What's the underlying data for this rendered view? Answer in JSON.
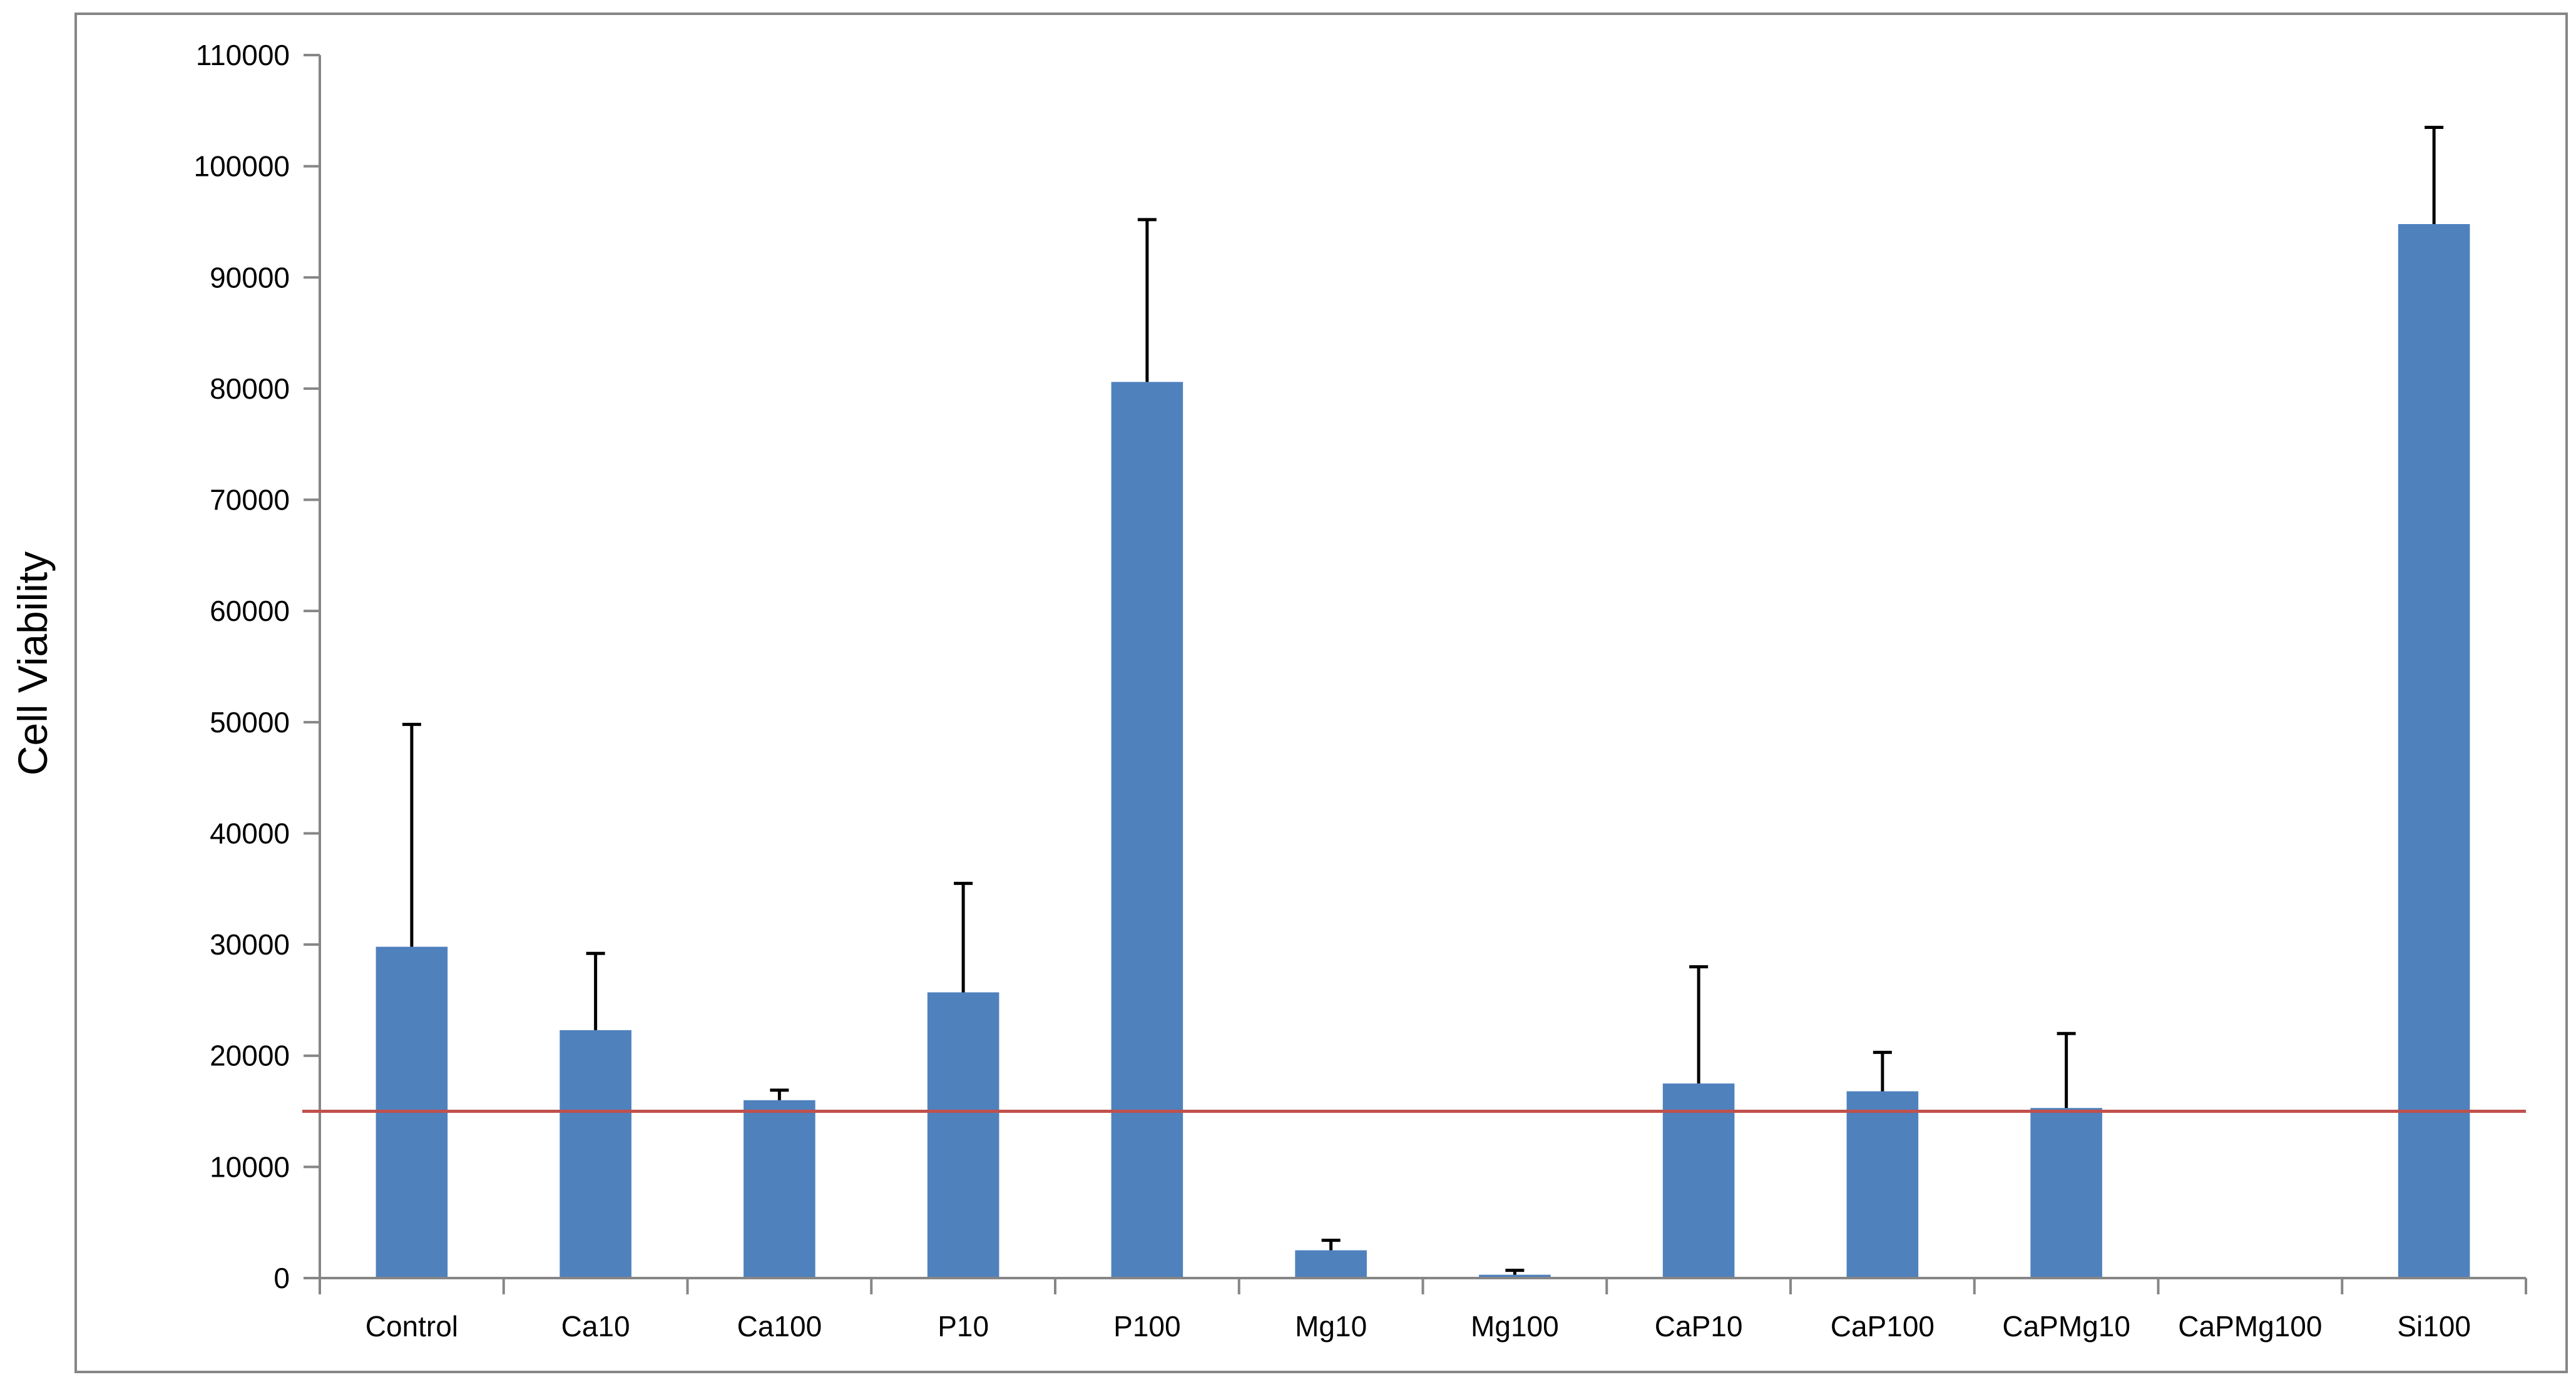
{
  "chart_data": {
    "type": "bar",
    "title": "",
    "xlabel": "",
    "ylabel": "Cell Viability",
    "ylim": [
      0,
      110000
    ],
    "y_tick_step": 10000,
    "y_ticks": [
      "0",
      "10000",
      "20000",
      "30000",
      "40000",
      "50000",
      "60000",
      "70000",
      "80000",
      "90000",
      "100000",
      "110000"
    ],
    "categories": [
      "Control",
      "Ca10",
      "Ca100",
      "P10",
      "P100",
      "Mg10",
      "Mg100",
      "CaP10",
      "CaP100",
      "CaPMg10",
      "CaPMg100",
      "Si100"
    ],
    "series": [
      {
        "values": [
          29800,
          22300,
          16000,
          25700,
          80600,
          2500,
          300,
          17500,
          16800,
          15300,
          0,
          94800
        ],
        "error_upper": [
          49800,
          29200,
          16900,
          35500,
          95200,
          3400,
          700,
          28000,
          20300,
          22000,
          null,
          103500
        ]
      }
    ],
    "reference_line": 15000,
    "grid": false,
    "legend": "none",
    "colors": {
      "bar": "#4f81bd",
      "error_bar": "#000000",
      "reference_line": "#c0504d",
      "axis": "#868686",
      "frame": "#868686"
    }
  }
}
